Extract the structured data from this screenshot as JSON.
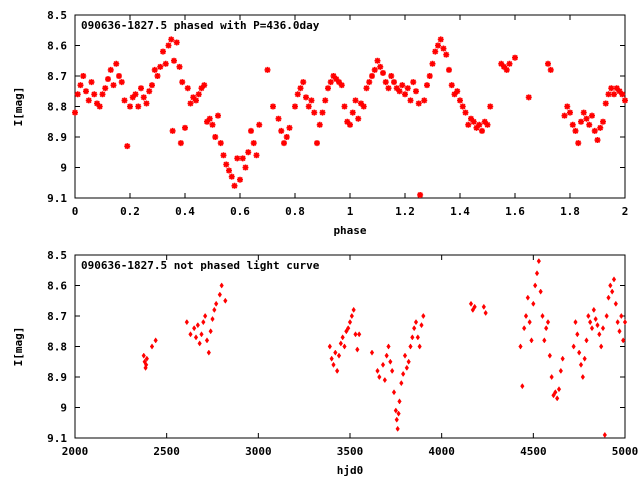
{
  "colors": {
    "points": "#ff0000",
    "axes": "#000000",
    "background": "#ffffff"
  },
  "chart_data": [
    {
      "type": "scatter",
      "title": "090636-1827.5 phased with P=436.0day",
      "xlabel": "phase",
      "ylabel": "I[mag]",
      "xlim": [
        0,
        2
      ],
      "ylim": [
        8.5,
        9.1
      ],
      "y_inverted": true,
      "grid": false,
      "marker": "star",
      "xticks": [
        "0",
        "0.2",
        "0.4",
        "0.6",
        "0.8",
        "1",
        "1.2",
        "1.4",
        "1.6",
        "1.8",
        "2"
      ],
      "yticks": [
        "8.5",
        "8.6",
        "8.7",
        "8.8",
        "8.9",
        "9",
        "9.1"
      ],
      "points": [
        [
          0.0,
          8.82
        ],
        [
          0.01,
          8.76
        ],
        [
          0.02,
          8.73
        ],
        [
          0.03,
          8.7
        ],
        [
          0.04,
          8.75
        ],
        [
          0.05,
          8.78
        ],
        [
          0.06,
          8.72
        ],
        [
          0.07,
          8.76
        ],
        [
          0.08,
          8.79
        ],
        [
          0.09,
          8.8
        ],
        [
          0.1,
          8.76
        ],
        [
          0.11,
          8.74
        ],
        [
          0.12,
          8.71
        ],
        [
          0.13,
          8.68
        ],
        [
          0.14,
          8.73
        ],
        [
          0.15,
          8.66
        ],
        [
          0.16,
          8.7
        ],
        [
          0.17,
          8.72
        ],
        [
          0.18,
          8.78
        ],
        [
          0.19,
          8.93
        ],
        [
          0.2,
          8.8
        ],
        [
          0.21,
          8.77
        ],
        [
          0.22,
          8.76
        ],
        [
          0.23,
          8.8
        ],
        [
          0.24,
          8.74
        ],
        [
          0.25,
          8.77
        ],
        [
          0.26,
          8.79
        ],
        [
          0.27,
          8.75
        ],
        [
          0.28,
          8.73
        ],
        [
          0.29,
          8.68
        ],
        [
          0.3,
          8.7
        ],
        [
          0.31,
          8.67
        ],
        [
          0.32,
          8.62
        ],
        [
          0.33,
          8.66
        ],
        [
          0.34,
          8.6
        ],
        [
          0.35,
          8.58
        ],
        [
          0.355,
          8.88
        ],
        [
          0.36,
          8.65
        ],
        [
          0.37,
          8.59
        ],
        [
          0.38,
          8.67
        ],
        [
          0.385,
          8.92
        ],
        [
          0.39,
          8.72
        ],
        [
          0.4,
          8.87
        ],
        [
          0.41,
          8.74
        ],
        [
          0.42,
          8.79
        ],
        [
          0.43,
          8.77
        ],
        [
          0.44,
          8.78
        ],
        [
          0.45,
          8.76
        ],
        [
          0.46,
          8.74
        ],
        [
          0.47,
          8.73
        ],
        [
          0.48,
          8.85
        ],
        [
          0.49,
          8.84
        ],
        [
          0.5,
          8.86
        ],
        [
          0.51,
          8.9
        ],
        [
          0.52,
          8.83
        ],
        [
          0.53,
          8.92
        ],
        [
          0.54,
          8.96
        ],
        [
          0.55,
          8.99
        ],
        [
          0.56,
          9.01
        ],
        [
          0.57,
          9.03
        ],
        [
          0.58,
          9.06
        ],
        [
          0.59,
          8.97
        ],
        [
          0.6,
          9.04
        ],
        [
          0.61,
          8.97
        ],
        [
          0.62,
          9.0
        ],
        [
          0.63,
          8.95
        ],
        [
          0.64,
          8.88
        ],
        [
          0.65,
          8.92
        ],
        [
          0.66,
          8.96
        ],
        [
          0.67,
          8.86
        ],
        [
          0.7,
          8.68
        ],
        [
          0.72,
          8.8
        ],
        [
          0.74,
          8.84
        ],
        [
          0.75,
          8.88
        ],
        [
          0.76,
          8.92
        ],
        [
          0.77,
          8.9
        ],
        [
          0.78,
          8.87
        ],
        [
          0.8,
          8.8
        ],
        [
          0.81,
          8.76
        ],
        [
          0.82,
          8.74
        ],
        [
          0.83,
          8.72
        ],
        [
          0.84,
          8.77
        ],
        [
          0.85,
          8.8
        ],
        [
          0.86,
          8.78
        ],
        [
          0.87,
          8.82
        ],
        [
          0.88,
          8.92
        ],
        [
          0.89,
          8.86
        ],
        [
          0.9,
          8.82
        ],
        [
          0.91,
          8.78
        ],
        [
          0.92,
          8.74
        ],
        [
          0.93,
          8.72
        ],
        [
          0.94,
          8.7
        ],
        [
          0.95,
          8.71
        ],
        [
          0.96,
          8.72
        ],
        [
          0.97,
          8.73
        ],
        [
          0.98,
          8.8
        ],
        [
          0.99,
          8.85
        ],
        [
          1.0,
          8.86
        ],
        [
          1.01,
          8.82
        ],
        [
          1.02,
          8.78
        ],
        [
          1.03,
          8.84
        ],
        [
          1.04,
          8.79
        ],
        [
          1.05,
          8.8
        ],
        [
          1.06,
          8.74
        ],
        [
          1.07,
          8.72
        ],
        [
          1.08,
          8.7
        ],
        [
          1.09,
          8.68
        ],
        [
          1.1,
          8.65
        ],
        [
          1.11,
          8.67
        ],
        [
          1.12,
          8.69
        ],
        [
          1.13,
          8.72
        ],
        [
          1.14,
          8.74
        ],
        [
          1.15,
          8.7
        ],
        [
          1.16,
          8.72
        ],
        [
          1.17,
          8.74
        ],
        [
          1.18,
          8.75
        ],
        [
          1.19,
          8.73
        ],
        [
          1.2,
          8.76
        ],
        [
          1.21,
          8.74
        ],
        [
          1.22,
          8.78
        ],
        [
          1.23,
          8.72
        ],
        [
          1.24,
          8.75
        ],
        [
          1.25,
          8.79
        ],
        [
          1.255,
          9.09
        ],
        [
          1.27,
          8.78
        ],
        [
          1.28,
          8.73
        ],
        [
          1.29,
          8.7
        ],
        [
          1.3,
          8.66
        ],
        [
          1.31,
          8.62
        ],
        [
          1.32,
          8.6
        ],
        [
          1.33,
          8.58
        ],
        [
          1.34,
          8.61
        ],
        [
          1.35,
          8.63
        ],
        [
          1.36,
          8.68
        ],
        [
          1.37,
          8.73
        ],
        [
          1.38,
          8.76
        ],
        [
          1.39,
          8.75
        ],
        [
          1.4,
          8.78
        ],
        [
          1.41,
          8.8
        ],
        [
          1.42,
          8.82
        ],
        [
          1.43,
          8.86
        ],
        [
          1.44,
          8.84
        ],
        [
          1.45,
          8.85
        ],
        [
          1.46,
          8.87
        ],
        [
          1.47,
          8.86
        ],
        [
          1.48,
          8.88
        ],
        [
          1.49,
          8.85
        ],
        [
          1.5,
          8.86
        ],
        [
          1.51,
          8.8
        ],
        [
          1.55,
          8.66
        ],
        [
          1.56,
          8.67
        ],
        [
          1.57,
          8.68
        ],
        [
          1.58,
          8.66
        ],
        [
          1.6,
          8.64
        ],
        [
          1.65,
          8.77
        ],
        [
          1.72,
          8.66
        ],
        [
          1.73,
          8.68
        ],
        [
          1.78,
          8.83
        ],
        [
          1.79,
          8.8
        ],
        [
          1.8,
          8.82
        ],
        [
          1.81,
          8.86
        ],
        [
          1.82,
          8.88
        ],
        [
          1.83,
          8.92
        ],
        [
          1.84,
          8.85
        ],
        [
          1.85,
          8.82
        ],
        [
          1.86,
          8.84
        ],
        [
          1.87,
          8.86
        ],
        [
          1.88,
          8.83
        ],
        [
          1.89,
          8.88
        ],
        [
          1.9,
          8.91
        ],
        [
          1.91,
          8.87
        ],
        [
          1.92,
          8.85
        ],
        [
          1.93,
          8.79
        ],
        [
          1.94,
          8.76
        ],
        [
          1.95,
          8.74
        ],
        [
          1.96,
          8.76
        ],
        [
          1.97,
          8.74
        ],
        [
          1.98,
          8.75
        ],
        [
          1.99,
          8.76
        ],
        [
          2.0,
          8.78
        ]
      ]
    },
    {
      "type": "scatter",
      "title": "090636-1827.5 not phased light curve",
      "xlabel": "hjd0",
      "ylabel": "I[mag]",
      "xlim": [
        2000,
        5000
      ],
      "ylim": [
        8.5,
        9.1
      ],
      "y_inverted": true,
      "grid": false,
      "marker": "diamond",
      "xticks": [
        "2000",
        "2500",
        "3000",
        "3500",
        "4000",
        "4500",
        "5000"
      ],
      "yticks": [
        "8.5",
        "8.6",
        "8.7",
        "8.8",
        "8.9",
        "9",
        "9.1"
      ],
      "points": [
        [
          2375,
          8.83
        ],
        [
          2380,
          8.85
        ],
        [
          2385,
          8.87
        ],
        [
          2388,
          8.86
        ],
        [
          2392,
          8.84
        ],
        [
          2420,
          8.8
        ],
        [
          2440,
          8.78
        ],
        [
          2610,
          8.72
        ],
        [
          2630,
          8.76
        ],
        [
          2650,
          8.74
        ],
        [
          2660,
          8.77
        ],
        [
          2670,
          8.73
        ],
        [
          2680,
          8.79
        ],
        [
          2690,
          8.76
        ],
        [
          2700,
          8.72
        ],
        [
          2710,
          8.7
        ],
        [
          2720,
          8.78
        ],
        [
          2730,
          8.82
        ],
        [
          2740,
          8.75
        ],
        [
          2750,
          8.71
        ],
        [
          2760,
          8.68
        ],
        [
          2770,
          8.66
        ],
        [
          2790,
          8.63
        ],
        [
          2800,
          8.6
        ],
        [
          2820,
          8.65
        ],
        [
          3390,
          8.8
        ],
        [
          3400,
          8.84
        ],
        [
          3410,
          8.86
        ],
        [
          3420,
          8.82
        ],
        [
          3430,
          8.88
        ],
        [
          3440,
          8.83
        ],
        [
          3450,
          8.79
        ],
        [
          3460,
          8.77
        ],
        [
          3470,
          8.8
        ],
        [
          3480,
          8.75
        ],
        [
          3490,
          8.74
        ],
        [
          3500,
          8.72
        ],
        [
          3510,
          8.7
        ],
        [
          3520,
          8.68
        ],
        [
          3530,
          8.76
        ],
        [
          3540,
          8.81
        ],
        [
          3550,
          8.76
        ],
        [
          3620,
          8.82
        ],
        [
          3650,
          8.88
        ],
        [
          3660,
          8.9
        ],
        [
          3680,
          8.86
        ],
        [
          3690,
          8.91
        ],
        [
          3700,
          8.83
        ],
        [
          3710,
          8.8
        ],
        [
          3720,
          8.85
        ],
        [
          3730,
          8.88
        ],
        [
          3740,
          8.95
        ],
        [
          3750,
          9.01
        ],
        [
          3755,
          9.04
        ],
        [
          3760,
          9.07
        ],
        [
          3765,
          9.02
        ],
        [
          3770,
          8.98
        ],
        [
          3780,
          8.92
        ],
        [
          3790,
          8.89
        ],
        [
          3800,
          8.83
        ],
        [
          3810,
          8.87
        ],
        [
          3820,
          8.85
        ],
        [
          3830,
          8.8
        ],
        [
          3840,
          8.77
        ],
        [
          3850,
          8.74
        ],
        [
          3860,
          8.72
        ],
        [
          3870,
          8.77
        ],
        [
          3880,
          8.8
        ],
        [
          3890,
          8.73
        ],
        [
          3900,
          8.7
        ],
        [
          4160,
          8.66
        ],
        [
          4170,
          8.68
        ],
        [
          4180,
          8.67
        ],
        [
          4230,
          8.67
        ],
        [
          4240,
          8.69
        ],
        [
          4430,
          8.8
        ],
        [
          4440,
          8.93
        ],
        [
          4450,
          8.74
        ],
        [
          4460,
          8.7
        ],
        [
          4470,
          8.64
        ],
        [
          4480,
          8.72
        ],
        [
          4490,
          8.78
        ],
        [
          4500,
          8.66
        ],
        [
          4510,
          8.6
        ],
        [
          4520,
          8.56
        ],
        [
          4530,
          8.52
        ],
        [
          4540,
          8.62
        ],
        [
          4550,
          8.7
        ],
        [
          4560,
          8.78
        ],
        [
          4570,
          8.74
        ],
        [
          4580,
          8.72
        ],
        [
          4590,
          8.83
        ],
        [
          4600,
          8.9
        ],
        [
          4610,
          8.96
        ],
        [
          4620,
          8.95
        ],
        [
          4630,
          8.97
        ],
        [
          4640,
          8.94
        ],
        [
          4650,
          8.88
        ],
        [
          4660,
          8.84
        ],
        [
          4720,
          8.8
        ],
        [
          4730,
          8.72
        ],
        [
          4740,
          8.76
        ],
        [
          4750,
          8.82
        ],
        [
          4760,
          8.86
        ],
        [
          4770,
          8.9
        ],
        [
          4780,
          8.84
        ],
        [
          4790,
          8.78
        ],
        [
          4800,
          8.7
        ],
        [
          4810,
          8.72
        ],
        [
          4820,
          8.74
        ],
        [
          4830,
          8.68
        ],
        [
          4840,
          8.71
        ],
        [
          4850,
          8.73
        ],
        [
          4860,
          8.76
        ],
        [
          4870,
          8.8
        ],
        [
          4880,
          8.74
        ],
        [
          4890,
          9.09
        ],
        [
          4900,
          8.7
        ],
        [
          4910,
          8.64
        ],
        [
          4920,
          8.6
        ],
        [
          4930,
          8.62
        ],
        [
          4940,
          8.58
        ],
        [
          4950,
          8.66
        ],
        [
          4960,
          8.72
        ],
        [
          4970,
          8.75
        ],
        [
          4980,
          8.7
        ],
        [
          4990,
          8.78
        ],
        [
          5000,
          8.72
        ]
      ]
    }
  ]
}
